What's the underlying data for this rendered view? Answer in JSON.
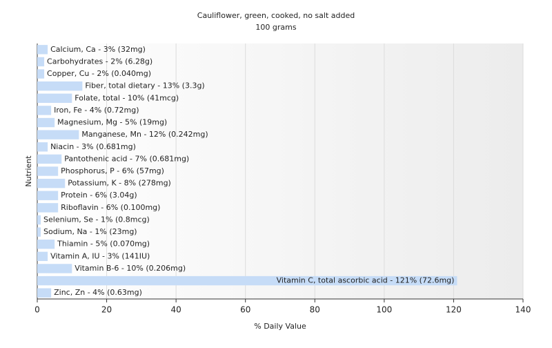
{
  "chart_data": {
    "type": "hbar",
    "title": "Cauliflower, green, cooked, no salt added",
    "subtitle": "100 grams",
    "x_label": "% Daily Value",
    "y_label": "Nutrient",
    "categories": [
      "Calcium, Ca - 3% (32mg)",
      "Carbohydrates - 2% (6.28g)",
      "Copper, Cu - 2% (0.040mg)",
      "Fiber, total dietary - 13% (3.3g)",
      "Folate, total - 10% (41mcg)",
      "Iron, Fe - 4% (0.72mg)",
      "Magnesium, Mg - 5% (19mg)",
      "Manganese, Mn - 12% (0.242mg)",
      "Niacin - 3% (0.681mg)",
      "Pantothenic acid - 7% (0.681mg)",
      "Phosphorus, P - 6% (57mg)",
      "Potassium, K - 8% (278mg)",
      "Protein - 6% (3.04g)",
      "Riboflavin - 6% (0.100mg)",
      "Selenium, Se - 1% (0.8mcg)",
      "Sodium, Na - 1% (23mg)",
      "Thiamin - 5% (0.070mg)",
      "Vitamin A, IU - 3% (141IU)",
      "Vitamin B-6 - 10% (0.206mg)",
      "Vitamin C, total ascorbic acid - 121% (72.6mg)",
      "Zinc, Zn - 4% (0.63mg)"
    ],
    "values": [
      3,
      2,
      2,
      13,
      10,
      4,
      5,
      12,
      3,
      7,
      6,
      8,
      6,
      6,
      1,
      1,
      5,
      3,
      10,
      121,
      4
    ],
    "color": "#c6dcf7",
    "xlim": [
      0,
      140
    ],
    "xticks": [
      0,
      20,
      40,
      60,
      80,
      100,
      120,
      140
    ],
    "grid": true
  }
}
